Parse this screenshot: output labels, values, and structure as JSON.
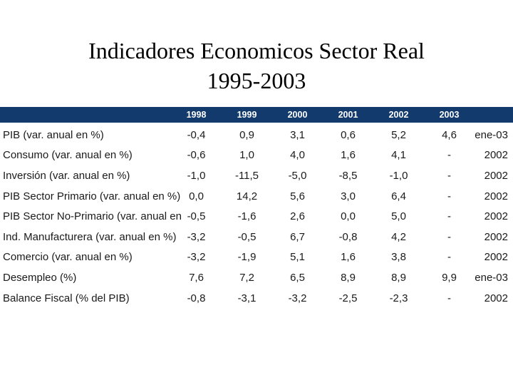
{
  "slide": {
    "title_line1": "Indicadores Economicos Sector Real",
    "title_line2": "1995-2003"
  },
  "table": {
    "header_years": [
      "1998",
      "1999",
      "2000",
      "2001",
      "2002",
      "2003"
    ],
    "rows": [
      {
        "label": "PIB (var. anual en %)",
        "values": [
          "-0,4",
          "0,9",
          "3,1",
          "0,6",
          "5,2",
          "4,6"
        ],
        "period": "ene-03"
      },
      {
        "label": "Consumo (var. anual en %)",
        "values": [
          "-0,6",
          "1,0",
          "4,0",
          "1,6",
          "4,1",
          "-"
        ],
        "period": "2002"
      },
      {
        "label": "Inversión (var. anual en %)",
        "values": [
          "-1,0",
          "-11,5",
          "-5,0",
          "-8,5",
          "-1,0",
          "-"
        ],
        "period": "2002"
      },
      {
        "label": "PIB Sector Primario (var. anual en %)",
        "values": [
          "0,0",
          "14,2",
          "5,6",
          "3,0",
          "6,4",
          "-"
        ],
        "period": "2002"
      },
      {
        "label": "PIB Sector No-Primario (var. anual en",
        "values": [
          "-0,5",
          "-1,6",
          "2,6",
          "0,0",
          "5,0",
          "-"
        ],
        "period": "2002"
      },
      {
        "label": "Ind. Manufacturera (var. anual en %)",
        "values": [
          "-3,2",
          "-0,5",
          "6,7",
          "-0,8",
          "4,2",
          "-"
        ],
        "period": "2002"
      },
      {
        "label": "Comercio (var. anual en %)",
        "values": [
          "-3,2",
          "-1,9",
          "5,1",
          "1,6",
          "3,8",
          "-"
        ],
        "period": "2002"
      },
      {
        "label": "Desempleo (%)",
        "values": [
          "7,6",
          "7,2",
          "6,5",
          "8,9",
          "8,9",
          "9,9"
        ],
        "period": "ene-03"
      },
      {
        "label": "Balance Fiscal (% del PIB)",
        "values": [
          "-0,8",
          "-3,1",
          "-3,2",
          "-2,5",
          "-2,3",
          "-"
        ],
        "period": "2002"
      }
    ]
  },
  "colors": {
    "header_bg": "#133A6C",
    "header_text": "#FFFFFF",
    "body_text": "#1A1A1A",
    "slide_bg": "#FFFFFF"
  }
}
